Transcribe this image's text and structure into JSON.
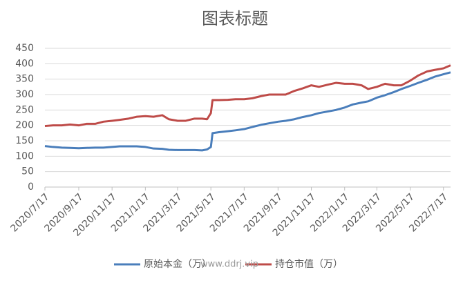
{
  "chart_data": {
    "type": "line",
    "title": "图表标题",
    "watermark": "www.ddrj.vip",
    "x": [
      "2020/7/17",
      "2020/8/1",
      "2020/8/17",
      "2020/9/1",
      "2020/9/17",
      "2020/10/1",
      "2020/10/17",
      "2020/11/1",
      "2020/11/17",
      "2020/12/1",
      "2020/12/17",
      "2021/1/1",
      "2021/1/17",
      "2021/2/1",
      "2021/2/17",
      "2021/3/1",
      "2021/3/17",
      "2021/4/1",
      "2021/4/17",
      "2021/5/1",
      "2021/5/10",
      "2021/5/17",
      "2021/5/20",
      "2021/6/1",
      "2021/6/17",
      "2021/7/1",
      "2021/7/17",
      "2021/8/1",
      "2021/8/17",
      "2021/9/1",
      "2021/9/17",
      "2021/10/1",
      "2021/10/17",
      "2021/11/1",
      "2021/11/17",
      "2021/12/1",
      "2021/12/17",
      "2022/1/1",
      "2022/1/17",
      "2022/2/1",
      "2022/2/17",
      "2022/3/1",
      "2022/3/17",
      "2022/4/1",
      "2022/4/17",
      "2022/5/1",
      "2022/5/17",
      "2022/6/1",
      "2022/6/17",
      "2022/7/1",
      "2022/7/17",
      "2022/7/30"
    ],
    "series": [
      {
        "name": "原始本金（万）",
        "color": "#4a7ebb",
        "values": [
          133,
          130,
          128,
          127,
          126,
          127,
          128,
          128,
          130,
          132,
          132,
          132,
          130,
          125,
          124,
          121,
          120,
          120,
          120,
          119,
          122,
          130,
          175,
          178,
          181,
          184,
          188,
          195,
          202,
          207,
          212,
          215,
          220,
          227,
          233,
          240,
          245,
          250,
          258,
          268,
          274,
          278,
          290,
          298,
          308,
          318,
          328,
          338,
          348,
          358,
          366,
          372
        ]
      },
      {
        "name": "持仓市值（万）",
        "color": "#be4b48",
        "values": [
          198,
          200,
          200,
          203,
          200,
          205,
          205,
          212,
          215,
          218,
          222,
          228,
          230,
          228,
          233,
          220,
          215,
          215,
          222,
          222,
          220,
          240,
          282,
          282,
          283,
          285,
          285,
          288,
          295,
          300,
          300,
          300,
          312,
          320,
          330,
          325,
          332,
          338,
          335,
          335,
          330,
          318,
          325,
          335,
          330,
          330,
          345,
          362,
          375,
          380,
          385,
          395
        ]
      }
    ],
    "xlim": [
      "2020/7/17",
      "2022/7/30"
    ],
    "xticks": [
      "2020/7/17",
      "2020/9/17",
      "2020/11/17",
      "2021/1/17",
      "2021/3/17",
      "2021/5/17",
      "2021/7/17",
      "2021/9/17",
      "2021/11/17",
      "2022/1/17",
      "2022/3/17",
      "2022/5/17",
      "2022/7/17"
    ],
    "ylim": [
      0,
      450
    ],
    "yticks": [
      0,
      50,
      100,
      150,
      200,
      250,
      300,
      350,
      400,
      450
    ],
    "grid": true,
    "legend": "bottom"
  }
}
